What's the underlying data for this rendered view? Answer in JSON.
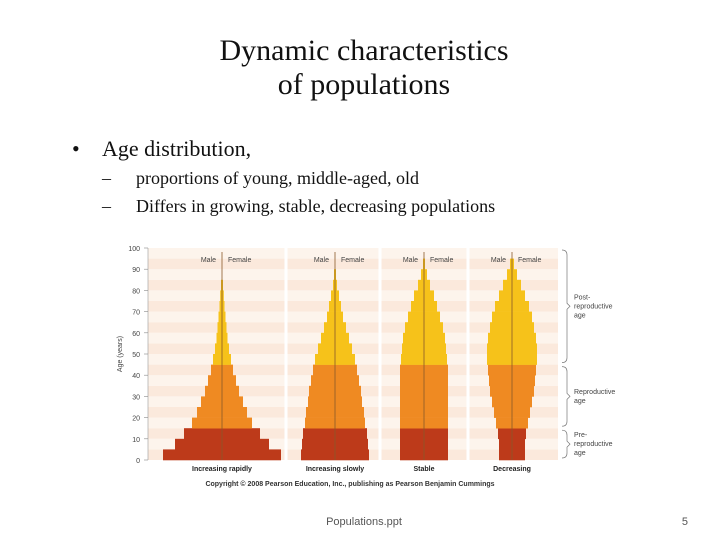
{
  "slide": {
    "title_line1": "Dynamic characteristics",
    "title_line2": "of populations",
    "bullet": "Age distribution,",
    "subbullets": [
      "proportions of young, middle-aged, old",
      "Differs in growing, stable, decreasing populations"
    ],
    "footer": "Populations.ppt",
    "page_number": "5"
  },
  "chart_data": {
    "type": "bar",
    "ylabel": "Age (years)",
    "y_ticks": [
      "0",
      "10",
      "20",
      "30",
      "40",
      "50",
      "60",
      "70",
      "80",
      "90",
      "100"
    ],
    "ylim": [
      0,
      100
    ],
    "side_labels": [
      "Male",
      "Female"
    ],
    "categories": [
      "Increasing rapidly",
      "Increasing slowly",
      "Stable",
      "Decreasing"
    ],
    "age_groups": [
      {
        "label": "Post-reproductive age",
        "range": [
          45,
          100
        ],
        "color": "#f6c21a"
      },
      {
        "label": "Reproductive age",
        "range": [
          15,
          45
        ],
        "color": "#ef8a22"
      },
      {
        "label": "Pre-reproductive age",
        "range": [
          0,
          15
        ],
        "color": "#bd3a1a"
      }
    ],
    "age_bins": [
      0,
      5,
      10,
      15,
      20,
      25,
      30,
      35,
      40,
      45,
      50,
      55,
      60,
      65,
      70,
      75,
      80,
      85,
      90,
      95
    ],
    "pyramids": [
      {
        "name": "Increasing rapidly",
        "half_widths": [
          59,
          47,
          38,
          30,
          25,
          21,
          17,
          14,
          11,
          9,
          7,
          5.5,
          4.5,
          3.5,
          2.5,
          1.8,
          1
        ],
        "male_widths_hint": "symmetric"
      },
      {
        "name": "Increasing slowly",
        "half_widths": [
          34,
          33,
          32,
          30,
          29,
          27,
          26,
          24,
          22,
          20,
          17,
          14,
          11,
          8,
          6,
          4,
          2,
          1
        ]
      },
      {
        "name": "Stable",
        "half_widths": [
          24,
          24,
          24,
          24,
          24,
          24,
          24,
          24,
          24,
          23,
          22,
          21,
          19,
          16,
          13,
          10,
          6,
          3,
          1
        ]
      },
      {
        "name": "Decreasing",
        "half_widths": [
          13,
          13,
          14,
          16,
          18,
          20,
          22,
          23,
          24,
          25,
          25,
          24,
          22,
          20,
          17,
          13,
          9,
          5,
          2
        ]
      }
    ],
    "copyright": "Copyright © 2008 Pearson Education, Inc., publishing as Pearson Benjamin Cummings",
    "background_bands": true
  }
}
